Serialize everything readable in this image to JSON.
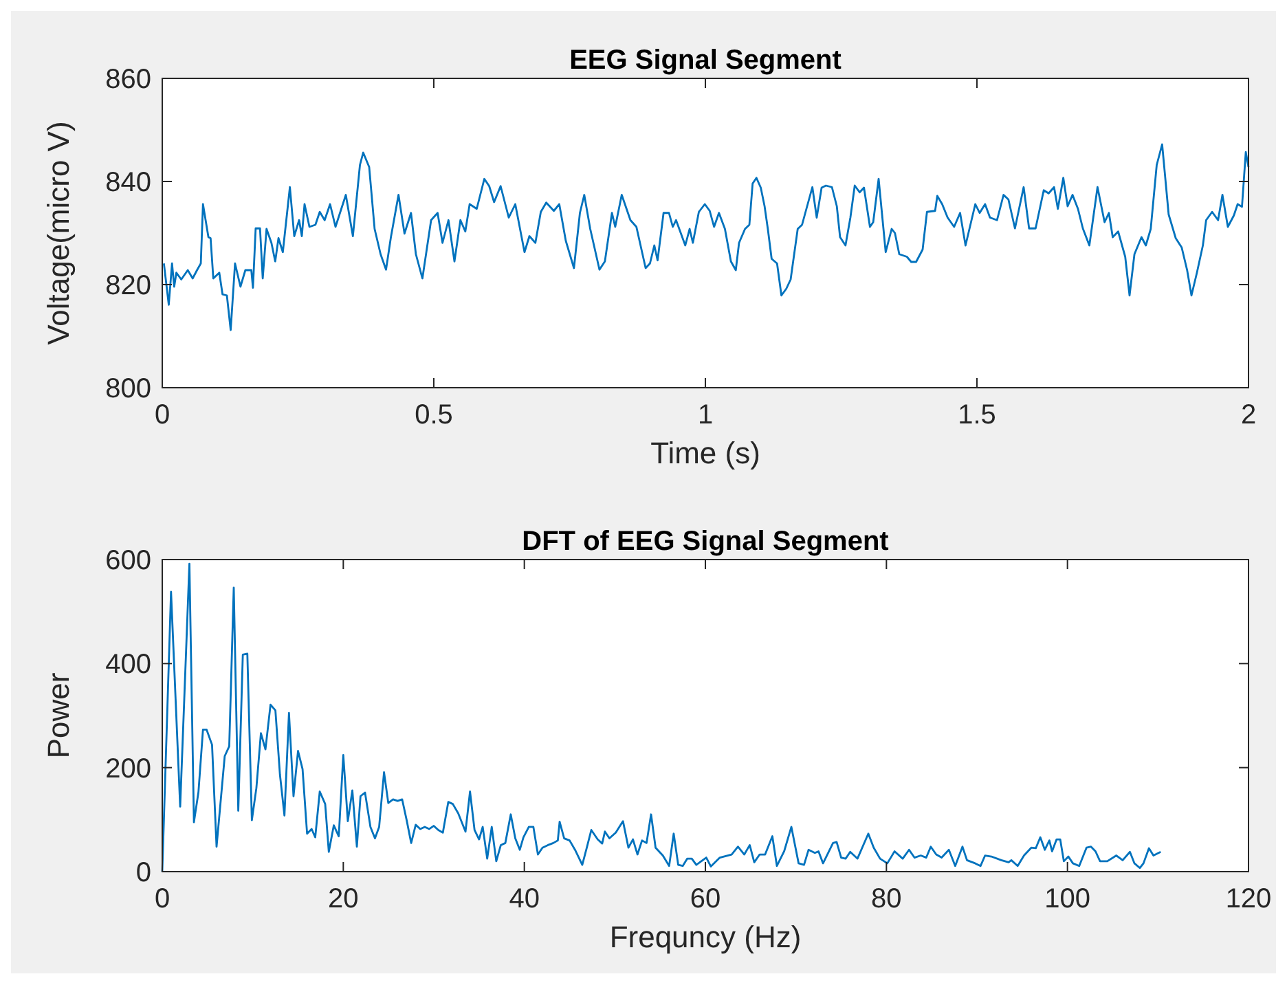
{
  "chart_data": [
    {
      "type": "line",
      "title": "EEG Signal Segment",
      "xlabel": "Time (s)",
      "ylabel": "Voltage(micro V)",
      "color": "#0072bd",
      "xlim": [
        0,
        2
      ],
      "ylim": [
        800,
        860
      ],
      "xticks": [
        0,
        0.5,
        1,
        1.5,
        2
      ],
      "yticks": [
        800,
        820,
        840,
        860
      ],
      "x": [
        0.003,
        0.012,
        0.018,
        0.022,
        0.026,
        0.035,
        0.047,
        0.056,
        0.064,
        0.071,
        0.075,
        0.085,
        0.089,
        0.094,
        0.105,
        0.111,
        0.119,
        0.126,
        0.134,
        0.144,
        0.153,
        0.164,
        0.167,
        0.172,
        0.18,
        0.185,
        0.192,
        0.201,
        0.208,
        0.214,
        0.222,
        0.235,
        0.243,
        0.252,
        0.257,
        0.262,
        0.271,
        0.282,
        0.29,
        0.299,
        0.309,
        0.319,
        0.338,
        0.351,
        0.364,
        0.37,
        0.381,
        0.391,
        0.402,
        0.412,
        0.421,
        0.435,
        0.446,
        0.458,
        0.467,
        0.479,
        0.495,
        0.507,
        0.516,
        0.527,
        0.538,
        0.549,
        0.558,
        0.566,
        0.579,
        0.593,
        0.602,
        0.611,
        0.623,
        0.638,
        0.65,
        0.667,
        0.676,
        0.687,
        0.697,
        0.707,
        0.721,
        0.731,
        0.743,
        0.758,
        0.769,
        0.777,
        0.788,
        0.805,
        0.815,
        0.828,
        0.834,
        0.846,
        0.862,
        0.873,
        0.89,
        0.898,
        0.906,
        0.912,
        0.923,
        0.933,
        0.94,
        0.946,
        0.963,
        0.971,
        0.977,
        0.988,
        0.999,
        1.008,
        1.016,
        1.025,
        1.036,
        1.047,
        1.056,
        1.062,
        1.073,
        1.081,
        1.087,
        1.094,
        1.102,
        1.109,
        1.115,
        1.122,
        1.132,
        1.14,
        1.149,
        1.157,
        1.17,
        1.178,
        1.185,
        1.197,
        1.205,
        1.214,
        1.222,
        1.233,
        1.242,
        1.248,
        1.258,
        1.267,
        1.275,
        1.284,
        1.292,
        1.303,
        1.309,
        1.319,
        1.332,
        1.343,
        1.349,
        1.357,
        1.371,
        1.379,
        1.388,
        1.4,
        1.408,
        1.423,
        1.427,
        1.436,
        1.446,
        1.458,
        1.469,
        1.479,
        1.49,
        1.497,
        1.505,
        1.515,
        1.524,
        1.537,
        1.549,
        1.558,
        1.57,
        1.586,
        1.596,
        1.608,
        1.623,
        1.632,
        1.642,
        1.649,
        1.659,
        1.667,
        1.676,
        1.686,
        1.695,
        1.707,
        1.722,
        1.735,
        1.743,
        1.75,
        1.76,
        1.773,
        1.781,
        1.79,
        1.803,
        1.811,
        1.82,
        1.831,
        1.841,
        1.853,
        1.866,
        1.877,
        1.887,
        1.895,
        1.905,
        1.916,
        1.922,
        1.933,
        1.944,
        1.952,
        1.962,
        1.973,
        1.98,
        1.988,
        1.995,
        2.0
      ],
      "values": [
        824.1,
        816.1,
        824.1,
        819.6,
        822.3,
        821.0,
        822.8,
        821.2,
        822.8,
        824.1,
        835.6,
        829.2,
        829.0,
        821.2,
        822.3,
        818.1,
        817.9,
        811.2,
        824.1,
        819.6,
        822.8,
        822.8,
        819.4,
        830.9,
        830.9,
        821.2,
        830.8,
        828.1,
        824.5,
        829.0,
        826.3,
        838.9,
        829.4,
        832.5,
        829.4,
        835.6,
        831.2,
        831.6,
        834.1,
        832.5,
        835.6,
        831.2,
        837.4,
        829.4,
        843.2,
        845.6,
        842.8,
        830.8,
        825.9,
        822.9,
        829.2,
        837.4,
        829.9,
        833.9,
        825.9,
        821.2,
        832.5,
        833.9,
        828.1,
        832.5,
        824.5,
        832.5,
        830.3,
        835.6,
        834.7,
        840.5,
        839.1,
        836.0,
        839.1,
        833.0,
        835.6,
        826.3,
        829.4,
        828.1,
        834.1,
        835.9,
        834.3,
        835.6,
        828.5,
        823.2,
        833.9,
        837.4,
        830.8,
        822.9,
        824.5,
        833.9,
        831.2,
        837.4,
        832.5,
        831.2,
        823.2,
        824.1,
        827.6,
        824.7,
        833.9,
        833.9,
        831.2,
        832.5,
        827.6,
        830.8,
        828.1,
        834.1,
        835.6,
        834.3,
        831.2,
        833.9,
        830.8,
        824.5,
        822.8,
        828.1,
        830.8,
        831.6,
        839.6,
        840.7,
        838.8,
        835.2,
        830.8,
        825.0,
        824.1,
        817.9,
        819.2,
        821.0,
        830.8,
        831.6,
        834.3,
        838.9,
        833.0,
        838.8,
        839.2,
        838.9,
        835.2,
        829.2,
        827.6,
        833.0,
        839.2,
        837.9,
        838.8,
        831.2,
        832.1,
        840.5,
        826.3,
        830.8,
        830.0,
        825.9,
        825.4,
        824.4,
        824.4,
        826.8,
        834.1,
        834.3,
        837.2,
        835.6,
        833.0,
        831.2,
        833.9,
        827.6,
        832.5,
        835.6,
        833.9,
        835.6,
        833.0,
        832.5,
        837.4,
        836.5,
        830.9,
        838.9,
        830.9,
        830.9,
        838.3,
        837.7,
        838.9,
        834.7,
        840.7,
        835.2,
        837.4,
        834.7,
        830.9,
        827.6,
        838.9,
        832.1,
        833.9,
        829.2,
        830.3,
        825.4,
        817.9,
        825.9,
        829.2,
        827.6,
        830.8,
        843.2,
        847.2,
        833.6,
        829.0,
        827.2,
        822.8,
        817.9,
        822.3,
        827.6,
        832.5,
        834.1,
        832.5,
        837.4,
        831.2,
        833.4,
        835.6,
        835.1,
        845.7,
        842.8
      ]
    },
    {
      "type": "line",
      "title": "DFT of EEG Signal Segment",
      "xlabel": "Frequncy (Hz)",
      "ylabel": "Power",
      "color": "#0072bd",
      "xlim": [
        0,
        120
      ],
      "ylim": [
        0,
        600
      ],
      "xticks": [
        0,
        20,
        40,
        60,
        80,
        100,
        120
      ],
      "yticks": [
        0,
        200,
        400,
        600
      ],
      "x": [
        0,
        0.97,
        1.98,
        3.0,
        3.5,
        4.0,
        4.5,
        4.9,
        5.5,
        6.0,
        6.9,
        7.4,
        7.9,
        8.4,
        8.9,
        9.4,
        9.9,
        10.4,
        10.9,
        11.4,
        11.96,
        12.5,
        13.0,
        13.5,
        14.0,
        14.5,
        15.0,
        15.5,
        16.0,
        16.5,
        16.9,
        17.4,
        18.0,
        18.4,
        18.95,
        19.5,
        20.0,
        20.5,
        21.0,
        21.5,
        21.9,
        22.4,
        23.0,
        23.5,
        23.96,
        24.5,
        24.97,
        25.5,
        26.0,
        26.5,
        27.0,
        27.5,
        28.0,
        28.5,
        29.0,
        29.5,
        30.0,
        30.5,
        31.0,
        31.6,
        32.1,
        32.7,
        33.5,
        34.0,
        34.5,
        35.0,
        35.4,
        35.9,
        36.4,
        36.9,
        37.4,
        37.9,
        38.5,
        39.0,
        39.5,
        39.9,
        40.5,
        41.0,
        41.5,
        42.0,
        42.6,
        43.2,
        43.7,
        43.9,
        44.4,
        45.0,
        45.6,
        46.4,
        46.9,
        47.4,
        48.1,
        48.6,
        48.9,
        49.4,
        50.1,
        50.9,
        51.5,
        52.0,
        52.5,
        53.0,
        53.5,
        54.0,
        54.5,
        55.3,
        56.0,
        56.5,
        57.0,
        57.5,
        58.0,
        58.5,
        59.0,
        60.1,
        60.6,
        61.6,
        62.9,
        63.6,
        64.3,
        64.9,
        65.4,
        66.0,
        66.6,
        67.4,
        67.9,
        68.7,
        69.5,
        70.3,
        70.9,
        71.4,
        72.1,
        72.5,
        73.0,
        74.1,
        74.5,
        75.0,
        75.5,
        76.0,
        76.8,
        78.0,
        78.6,
        79.3,
        80.1,
        80.9,
        81.8,
        82.5,
        83.1,
        83.8,
        84.4,
        84.9,
        85.5,
        86.1,
        86.9,
        87.6,
        88.4,
        88.9,
        89.8,
        90.4,
        90.9,
        91.6,
        92.7,
        93.5,
        93.8,
        94.5,
        95.2,
        96.0,
        96.5,
        97.0,
        97.5,
        98.0,
        98.3,
        98.8,
        99.2,
        99.6,
        100.1,
        100.6,
        101.3,
        102.1,
        102.6,
        103.1,
        103.6,
        104.4,
        105.4,
        106.1,
        106.9,
        107.4,
        108.0,
        108.4,
        109.0,
        109.5,
        110.3
      ],
      "values": [
        0,
        538,
        125,
        592,
        95,
        153,
        273,
        273,
        244,
        48,
        222,
        241,
        546,
        117,
        417,
        419,
        99,
        161,
        266,
        235,
        321,
        310,
        187,
        108,
        305,
        145,
        232,
        197,
        73,
        82,
        66,
        154,
        130,
        38,
        89,
        68,
        224,
        97,
        156,
        48,
        145,
        152,
        86,
        64,
        86,
        191,
        132,
        139,
        136,
        139,
        99,
        55,
        90,
        82,
        86,
        82,
        88,
        80,
        75,
        134,
        130,
        112,
        77,
        154,
        80,
        62,
        86,
        25,
        86,
        20,
        51,
        55,
        110,
        64,
        42,
        66,
        86,
        86,
        33,
        46,
        51,
        55,
        60,
        96,
        64,
        60,
        42,
        13,
        46,
        80,
        62,
        54,
        77,
        64,
        75,
        97,
        46,
        62,
        33,
        60,
        55,
        110,
        46,
        31,
        11,
        73,
        13,
        11,
        25,
        25,
        13,
        27,
        10,
        27,
        33,
        48,
        33,
        51,
        18,
        33,
        33,
        68,
        11,
        39,
        86,
        16,
        13,
        42,
        36,
        39,
        16,
        55,
        57,
        27,
        25,
        38,
        25,
        73,
        46,
        25,
        16,
        39,
        25,
        42,
        27,
        31,
        27,
        48,
        33,
        27,
        42,
        11,
        48,
        22,
        16,
        11,
        31,
        29,
        22,
        18,
        22,
        11,
        31,
        46,
        45,
        66,
        42,
        60,
        39,
        62,
        62,
        20,
        29,
        16,
        11,
        46,
        48,
        39,
        20,
        20,
        31,
        22,
        38,
        16,
        7,
        16,
        45,
        31,
        38
      ]
    }
  ]
}
